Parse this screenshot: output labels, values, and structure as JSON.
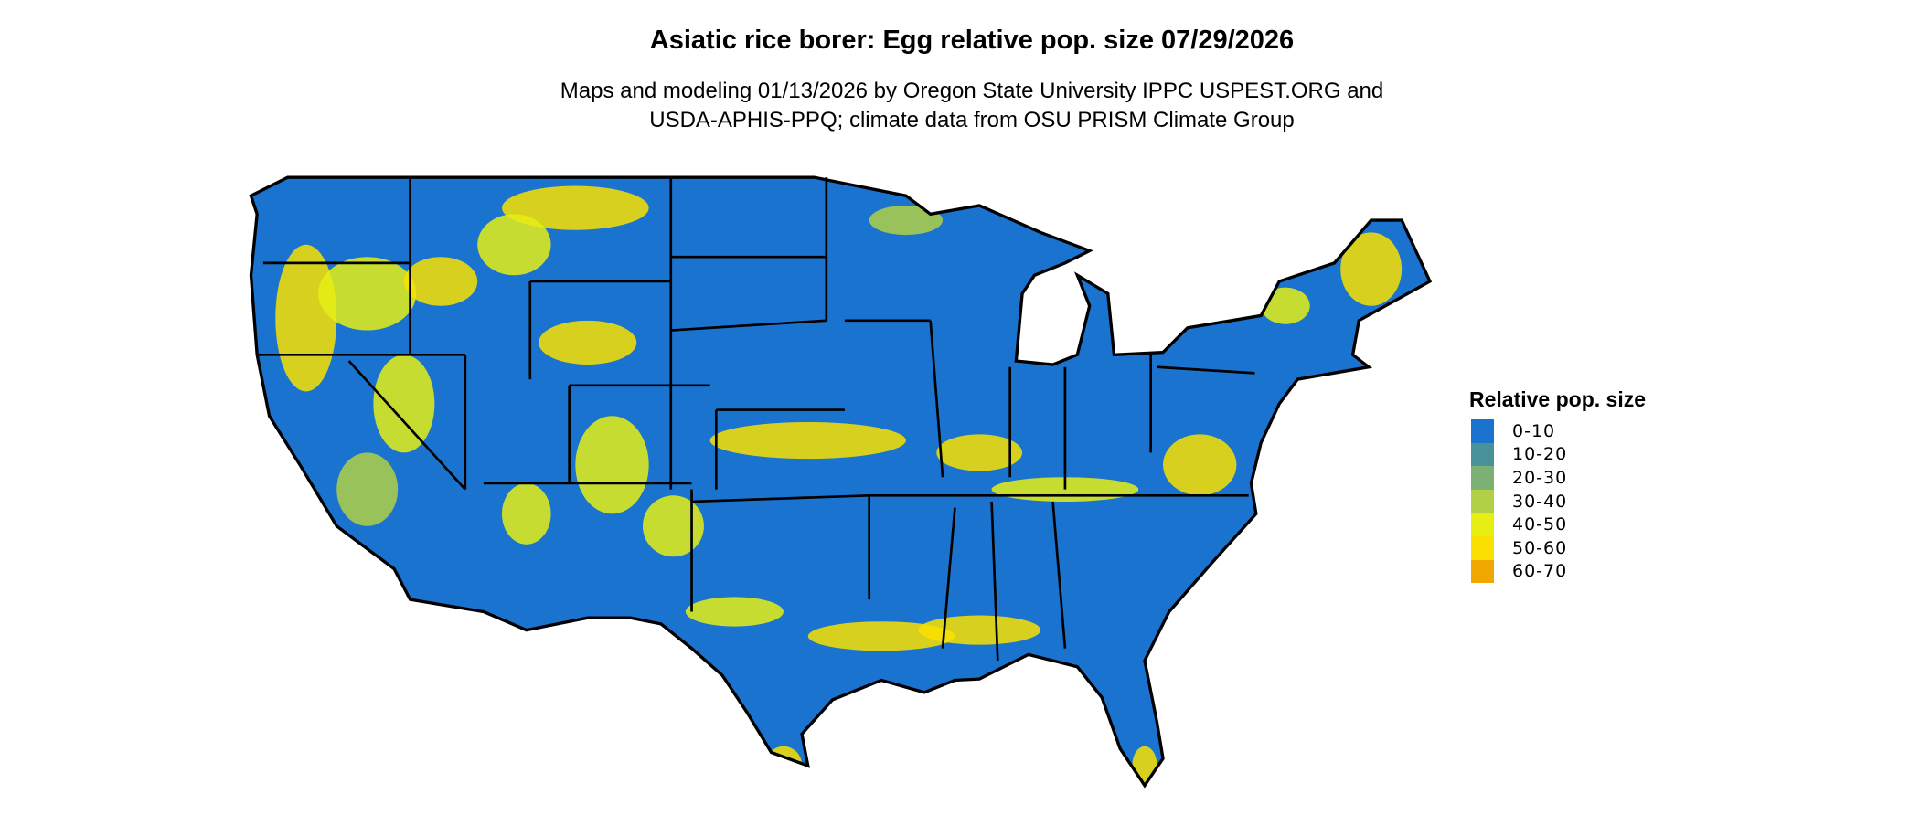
{
  "title": "Asiatic rice borer: Egg relative pop. size 07/29/2026",
  "subtitle_lines": [
    "Maps and modeling 01/13/2026 by Oregon State University IPPC USPEST.ORG and",
    "USDA-APHIS-PPQ; climate data from OSU PRISM Climate Group"
  ],
  "map": {
    "region": "Contiguous United States",
    "base_color": "#1A73CF",
    "border_color": "#000000"
  },
  "legend": {
    "title": "Relative pop. size",
    "items": [
      {
        "label": "0-10",
        "color": "#1A73CF"
      },
      {
        "label": "10-20",
        "color": "#4A929A"
      },
      {
        "label": "20-30",
        "color": "#7DB073"
      },
      {
        "label": "30-40",
        "color": "#B1D045"
      },
      {
        "label": "40-50",
        "color": "#E6EE14"
      },
      {
        "label": "50-60",
        "color": "#F9E000"
      },
      {
        "label": "60-70",
        "color": "#F0A800"
      }
    ]
  }
}
